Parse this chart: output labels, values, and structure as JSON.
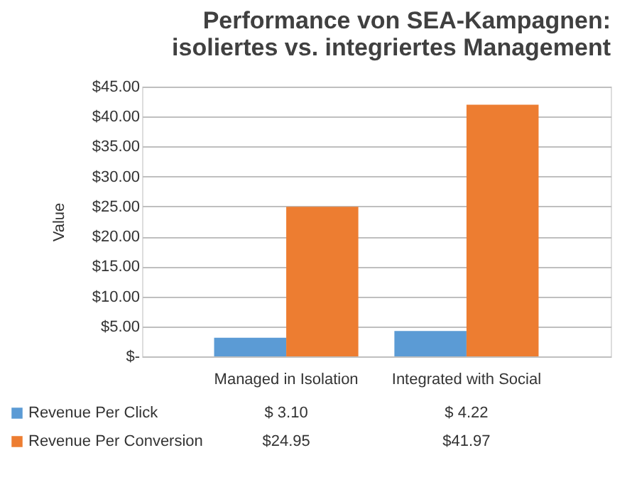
{
  "chart_data": {
    "type": "bar",
    "title": "Performance von SEA-Kampagnen:\nisoliertes vs. integriertes Management",
    "ylabel": "Value",
    "categories": [
      "Managed in Isolation",
      "Integrated with Social"
    ],
    "series": [
      {
        "name": "Revenue Per Click",
        "color": "#5b9bd5",
        "values": [
          3.1,
          4.22
        ],
        "value_labels": [
          "$ 3.10",
          "$ 4.22"
        ]
      },
      {
        "name": "Revenue Per Conversion",
        "color": "#ed7d31",
        "values": [
          24.95,
          41.97
        ],
        "value_labels": [
          "$24.95",
          "$41.97"
        ]
      }
    ],
    "ylim": [
      0,
      45
    ],
    "yticks": [
      {
        "value": 0,
        "label": "$-"
      },
      {
        "value": 5,
        "label": "$5.00"
      },
      {
        "value": 10,
        "label": "$10.00"
      },
      {
        "value": 15,
        "label": "$15.00"
      },
      {
        "value": 20,
        "label": "$20.00"
      },
      {
        "value": 25,
        "label": "$25.00"
      },
      {
        "value": 30,
        "label": "$30.00"
      },
      {
        "value": 35,
        "label": "$35.00"
      },
      {
        "value": 40,
        "label": "$40.00"
      },
      {
        "value": 45,
        "label": "$45.00"
      }
    ],
    "grid": "y",
    "legend": "bottom"
  }
}
